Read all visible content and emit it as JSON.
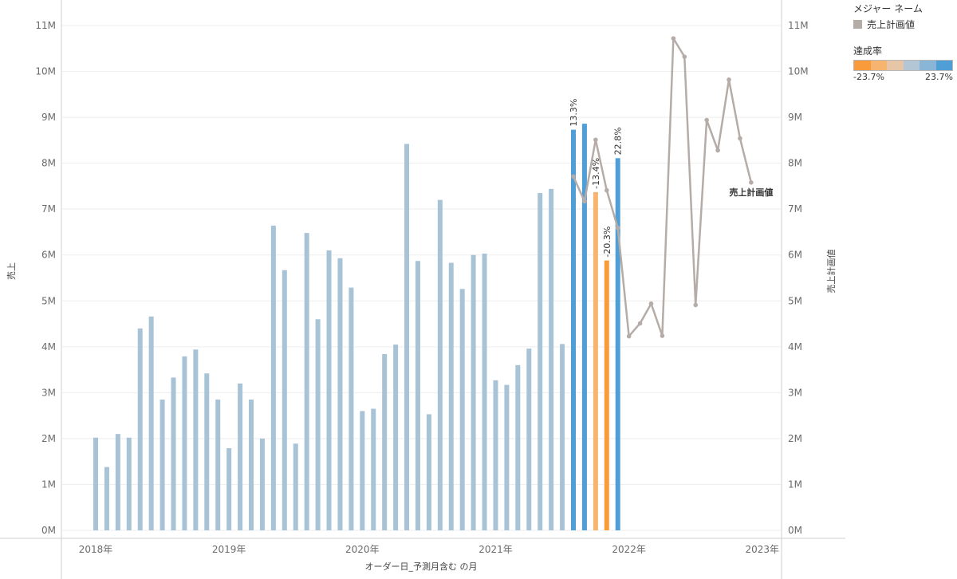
{
  "legend": {
    "measure_title": "メジャー ネーム",
    "measure_item": "売上計画値",
    "measure_color": "#b6aca7",
    "rate_title": "達成率",
    "rate_min": "-23.7%",
    "rate_max": "23.7%",
    "rate_colors": [
      "#f99b3a",
      "#f7b46e",
      "#e6c6a6",
      "#b2c6d6",
      "#89b5d6",
      "#4f9ed6"
    ]
  },
  "chart_data": {
    "type": "bar",
    "xlabel": "オーダー日_予測月含む の月",
    "ylabel": "売上",
    "y2label": "売上計画値",
    "ylim": [
      0,
      11500000
    ],
    "y_ticks": [
      0,
      1000000,
      2000000,
      3000000,
      4000000,
      5000000,
      6000000,
      7000000,
      8000000,
      9000000,
      10000000,
      11000000
    ],
    "y_tick_labels": [
      "0M",
      "1M",
      "2M",
      "3M",
      "4M",
      "5M",
      "6M",
      "7M",
      "8M",
      "9M",
      "10M",
      "11M"
    ],
    "year_labels": [
      "2018年",
      "2019年",
      "2020年",
      "2021年",
      "2022年",
      "2023年"
    ],
    "bar_series": {
      "name": "売上",
      "start": "2018-01",
      "values": [
        2020000,
        1380000,
        2100000,
        2020000,
        4400000,
        4660000,
        2850000,
        3330000,
        3790000,
        3940000,
        3420000,
        2850000,
        1790000,
        3200000,
        2850000,
        2000000,
        6640000,
        5670000,
        1890000,
        6480000,
        4600000,
        6100000,
        5930000,
        5290000,
        2600000,
        2650000,
        3840000,
        4050000,
        8420000,
        5870000,
        2530000,
        7200000,
        5830000,
        5260000,
        6000000,
        6030000,
        3270000,
        3170000,
        3600000,
        3960000,
        7350000,
        7440000,
        4060000,
        8730000,
        8860000,
        7370000,
        5880000,
        8110000
      ],
      "default_color": "#a9c3d6",
      "highlight": [
        {
          "index": 43,
          "rate": "13.3%",
          "color": "#4f9ed6"
        },
        {
          "index": 44,
          "rate": "",
          "color": "#4f9ed6"
        },
        {
          "index": 45,
          "rate": "-13.4%",
          "color": "#f7b46e"
        },
        {
          "index": 46,
          "rate": "-20.3%",
          "color": "#f99b3a"
        },
        {
          "index": 47,
          "rate": "22.8%",
          "color": "#4f9ed6"
        }
      ]
    },
    "line_series": {
      "name": "売上計画値",
      "color": "#b6aca7",
      "start": "2021-08",
      "values": [
        7710000,
        7170000,
        8510000,
        7410000,
        6590000,
        4230000,
        4510000,
        4940000,
        4240000,
        10720000,
        10320000,
        4910000,
        8940000,
        8280000,
        9820000,
        8540000,
        7580000
      ]
    }
  }
}
